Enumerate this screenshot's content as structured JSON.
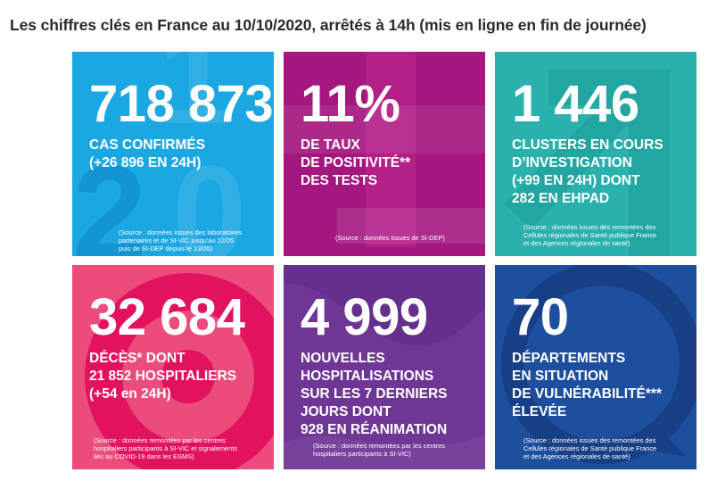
{
  "heading": "Les chiffres clés en France au 10/10/2020, arrêtés à 14h (mis en ligne en fin de journée)",
  "tiles": [
    {
      "number": "718 873",
      "lines": [
        "CAS CONFIRMÉS",
        "(+26 896 EN 24H)"
      ],
      "source": [
        "(Source : données issues des laboratoires",
        "partenaires et de SI-VIC jusqu'au 12/05",
        "puis de SI-DEP depuis le 13/05)"
      ],
      "color": "#1aa7e2"
    },
    {
      "number": "11%",
      "lines": [
        "DE TAUX",
        "DE POSITIVITÉ**",
        "DES TESTS"
      ],
      "source": [
        "(Source : données issues de SI-DEP)"
      ],
      "color": "#a3177f"
    },
    {
      "number": "1 446",
      "lines": [
        "CLUSTERS EN COURS",
        "D’INVESTIGATION",
        "(+99 EN 24H) DONT",
        "282 EN EHPAD"
      ],
      "source": [
        "(Source : données issues des remontées des",
        "Cellules régionales de Santé publique France",
        "et des Agences régionales de santé)"
      ],
      "color": "#2bb1ad"
    },
    {
      "number": "32 684",
      "lines": [
        "DÉCÈS* DONT",
        "21 852 HOSPITALIERS",
        "(+54 en 24H)"
      ],
      "source": [
        "(Source : données remontées par les centres",
        "hospitaliers participants à SI-VIC et signalements",
        "liés au COVID-19 dans les ESMS)"
      ],
      "color": "#eb4c7c"
    },
    {
      "number": "4 999",
      "lines": [
        "NOUVELLES",
        "HOSPITALISATIONS",
        "SUR LES 7 DERNIERS",
        "JOURS DONT",
        "928 EN RÉANIMATION"
      ],
      "source": [
        "(Source : données remontées par les centres",
        "hospitaliers participants à SI-VIC)"
      ],
      "color": "#64308c"
    },
    {
      "number": "70",
      "lines": [
        "DÉPARTEMENTS",
        "EN SITUATION",
        "DE VULNÉRABILITÉ***",
        "ÉLEVÉE"
      ],
      "source": [
        "(Source : données issues des remontées des",
        "Cellules régionales de Santé publique France",
        "et des Agences régionales de santé)"
      ],
      "color": "#1d4f9e"
    }
  ]
}
